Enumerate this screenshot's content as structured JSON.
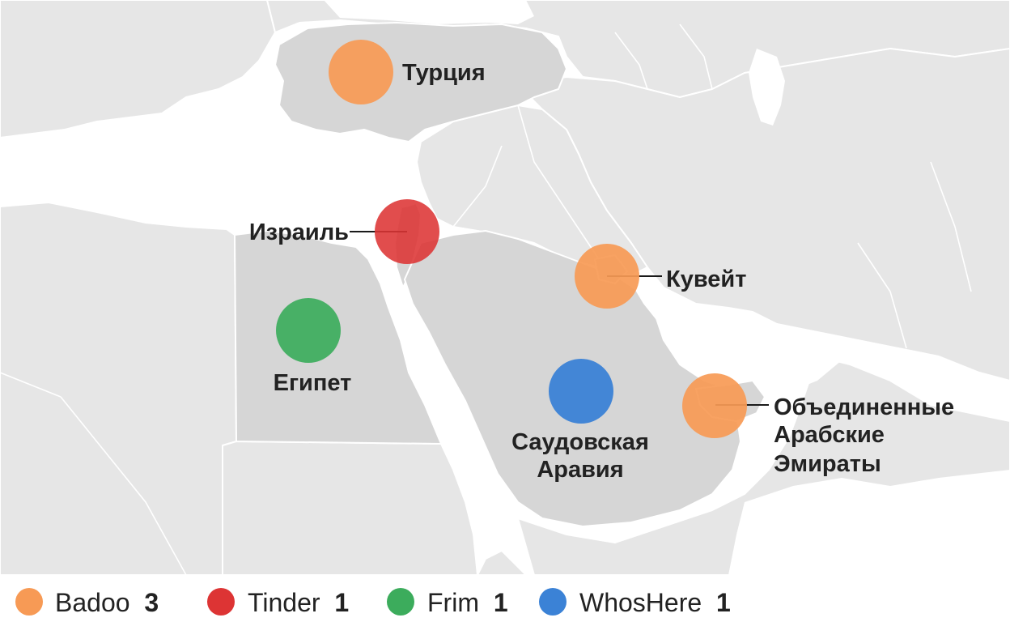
{
  "map": {
    "colors": {
      "background_land": "#e6e6e6",
      "highlighted_land": "#d6d6d6",
      "sea": "#ffffff",
      "border": "#ffffff",
      "leader_line": "#1a1a1a"
    },
    "countries": [
      {
        "id": "turkey",
        "label": "Турция",
        "app": "Badoo",
        "color": "#f79a55"
      },
      {
        "id": "israel",
        "label": "Израиль",
        "app": "Tinder",
        "color": "#dd3434"
      },
      {
        "id": "kuwait",
        "label": "Кувейт",
        "app": "Badoo",
        "color": "#f79a55"
      },
      {
        "id": "egypt",
        "label": "Египет",
        "app": "Frim",
        "color": "#3cac5c"
      },
      {
        "id": "saudi",
        "label_lines": [
          "Саудовская",
          "Аравия"
        ],
        "app": "WhosHere",
        "color": "#3b82d6"
      },
      {
        "id": "uae",
        "label_lines": [
          "Объединенные",
          "Арабские",
          "Эмираты"
        ],
        "app": "Badoo",
        "color": "#f79a55"
      }
    ]
  },
  "legend": {
    "items": [
      {
        "name": "Badoo",
        "count": "3",
        "color": "#f79a55"
      },
      {
        "name": "Tinder",
        "count": "1",
        "color": "#dd3434"
      },
      {
        "name": "Frim",
        "count": "1",
        "color": "#3cac5c"
      },
      {
        "name": "WhosHere",
        "count": "1",
        "color": "#3b82d6"
      }
    ]
  }
}
